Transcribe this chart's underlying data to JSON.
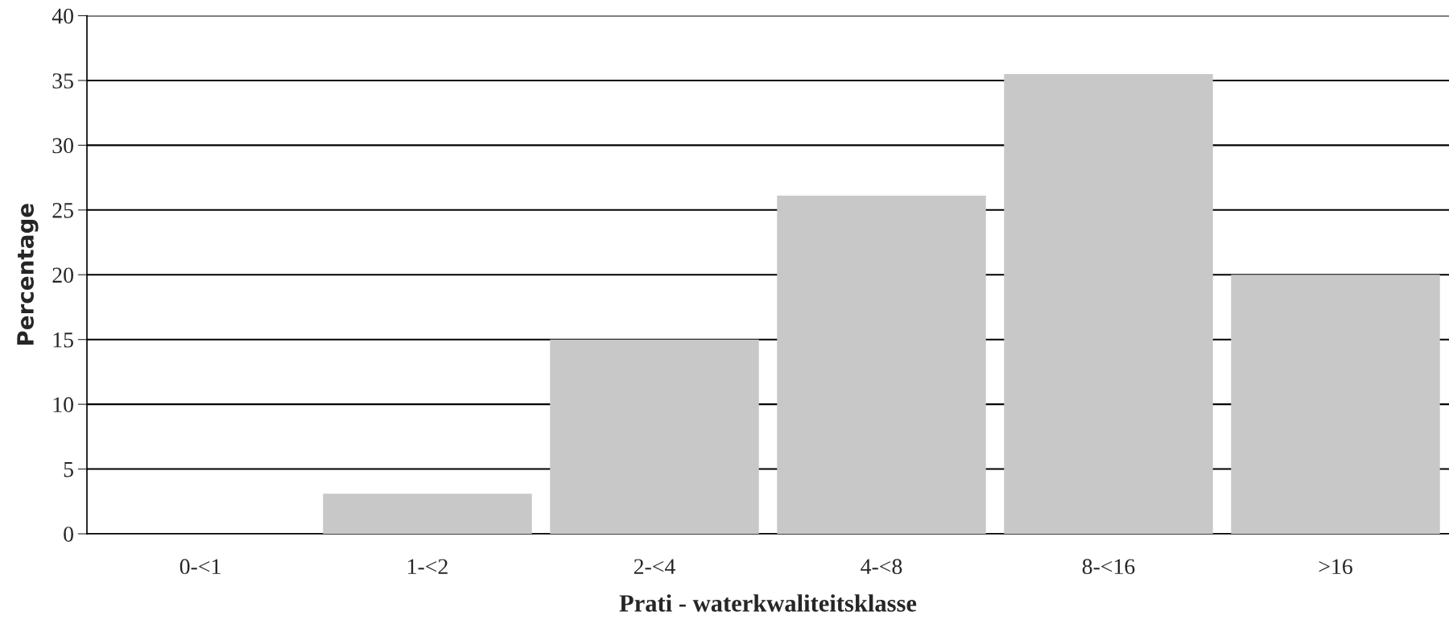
{
  "chart_data": {
    "type": "bar",
    "xlabel": "Prati - waterkwaliteitsklasse",
    "ylabel": "Percentage",
    "categories": [
      "0-<1",
      "1-<2",
      "2-<4",
      "4-<8",
      "8-<16",
      ">16"
    ],
    "values": [
      0,
      3.1,
      15.0,
      26.1,
      35.5,
      20.0
    ],
    "color": "#c8c8c8",
    "ylim": [
      0,
      40
    ],
    "yticks": [
      0,
      5,
      10,
      15,
      20,
      25,
      30,
      35,
      40
    ],
    "grid": "y"
  }
}
